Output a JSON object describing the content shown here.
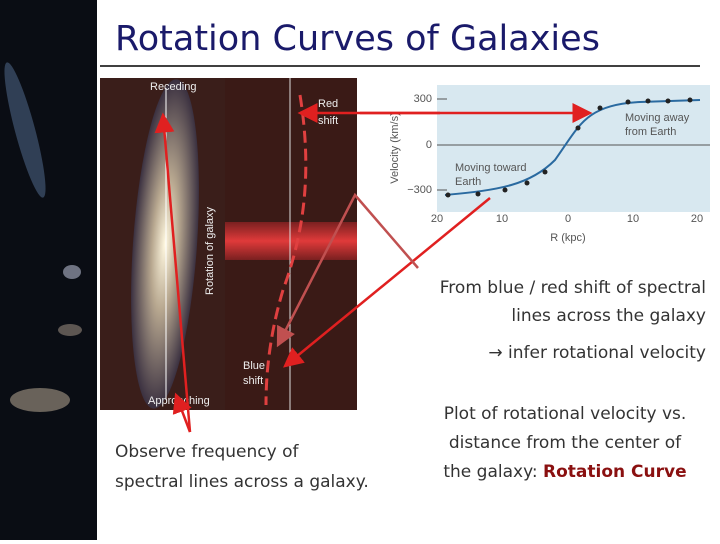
{
  "slide": {
    "title": "Rotation Curves of Galaxies",
    "galaxy_image": {
      "receding": "Receding",
      "approaching": "Approaching",
      "rotation_label": "Rotation of galaxy",
      "red_shift": [
        "Red",
        "shift"
      ],
      "blue_shift": [
        "Blue",
        "shift"
      ]
    },
    "rotation_curve": {
      "y_label": "Velocity (km/s)",
      "x_label": "R (kpc)",
      "y_ticks": [
        "300",
        "0",
        "−300"
      ],
      "x_ticks": [
        "20",
        "10",
        "0",
        "10",
        "20"
      ],
      "away_label": [
        "Moving away",
        "from Earth"
      ],
      "toward_label": [
        "Moving toward",
        "Earth"
      ]
    },
    "shift_note": [
      "From blue / red shift of spectral",
      "lines across the galaxy"
    ],
    "infer_note": "→ infer rotational velocity",
    "plot_note": [
      "Plot of rotational velocity vs.",
      "distance from the center of",
      "the galaxy: "
    ],
    "plot_note_bold": "Rotation Curve",
    "observe_note": [
      "Observe frequency of",
      "spectral lines across a galaxy."
    ]
  }
}
